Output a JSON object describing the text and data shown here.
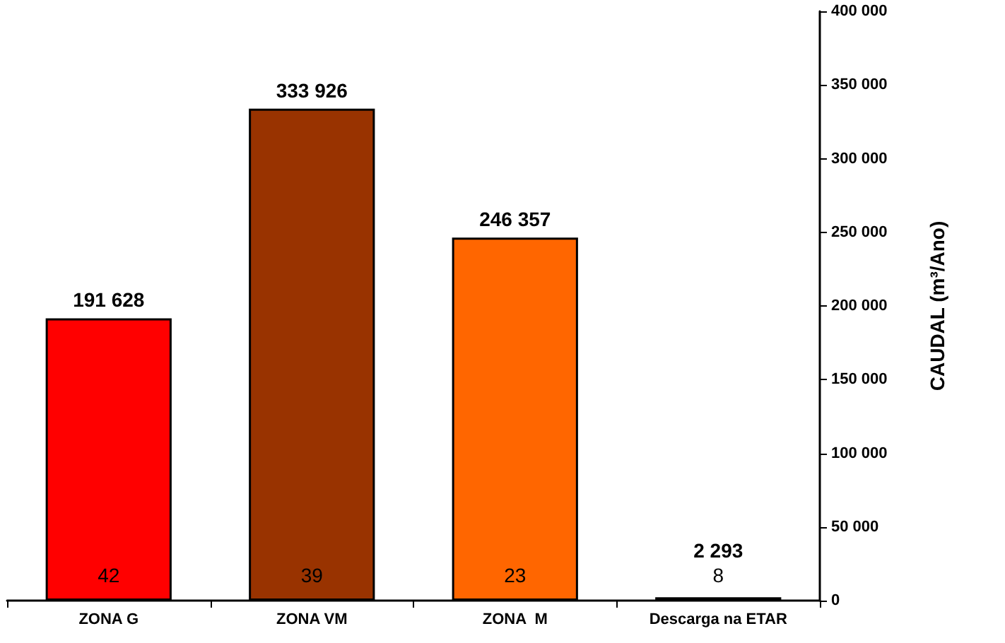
{
  "chart_data": {
    "type": "bar",
    "ylabel": "CAUDAL (m³/Ano)",
    "categories": [
      "ZONA G",
      "ZONA VM",
      "ZONA  M",
      "Descarga na ETAR"
    ],
    "values": [
      191628,
      333926,
      246357,
      2293
    ],
    "colors": [
      "#ff0000",
      "#993300",
      "#ff6600",
      "#000000"
    ],
    "value_labels": [
      "191 628",
      "333 926",
      "246 357",
      "2 293"
    ],
    "ylim": [
      0,
      400000
    ],
    "yticks": [
      0,
      {
        "value": 50000,
        "label": "50 000"
      },
      {
        "value": 100000,
        "label": "100 000"
      },
      {
        "value": 150000,
        "label": "150 000"
      },
      {
        "value": 200000,
        "label": "200 000"
      },
      {
        "value": 250000,
        "label": "250 000"
      },
      {
        "value": 300000,
        "label": "300 000"
      },
      {
        "value": 350000,
        "label": "350 000"
      },
      {
        "value": 400000,
        "label": "400 000"
      }
    ],
    "annotations": [
      "42",
      "39",
      "23",
      "8"
    ],
    "grid": false
  }
}
